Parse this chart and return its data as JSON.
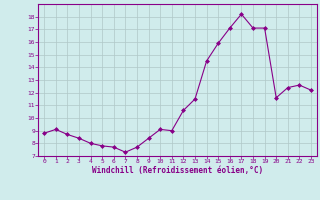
{
  "x": [
    0,
    1,
    2,
    3,
    4,
    5,
    6,
    7,
    8,
    9,
    10,
    11,
    12,
    13,
    14,
    15,
    16,
    17,
    18,
    19,
    20,
    21,
    22,
    23
  ],
  "y": [
    8.8,
    9.1,
    8.7,
    8.4,
    8.0,
    7.8,
    7.7,
    7.3,
    7.7,
    8.4,
    9.1,
    9.0,
    10.6,
    11.5,
    14.5,
    15.9,
    17.1,
    18.2,
    17.1,
    17.1,
    11.6,
    12.4,
    12.6,
    12.2
  ],
  "xlabel": "Windchill (Refroidissement éolien,°C)",
  "ylim": [
    7,
    19
  ],
  "yticks": [
    7,
    8,
    9,
    10,
    11,
    12,
    13,
    14,
    15,
    16,
    17,
    18
  ],
  "xticks": [
    0,
    1,
    2,
    3,
    4,
    5,
    6,
    7,
    8,
    9,
    10,
    11,
    12,
    13,
    14,
    15,
    16,
    17,
    18,
    19,
    20,
    21,
    22,
    23
  ],
  "line_color": "#880088",
  "marker_color": "#880088",
  "bg_color": "#d0ecec",
  "grid_color": "#b0c8c8",
  "axis_color": "#880088",
  "spine_color": "#880088"
}
